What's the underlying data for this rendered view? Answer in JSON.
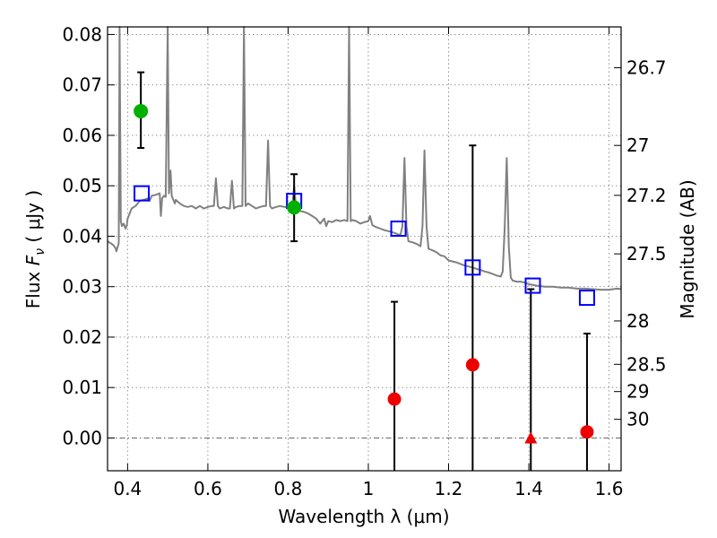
{
  "chart_data": {
    "type": "scatter",
    "xlabel": "Wavelength  λ (μm)",
    "ylabel_parts": {
      "prefix": "Flux  ",
      "var": "F",
      "sub": "ν",
      "unit": "  ( μJy )"
    },
    "ylabel_right": "Magnitude (AB)",
    "xlim": [
      0.35,
      1.63
    ],
    "ylim": [
      -0.0065,
      0.0815
    ],
    "grid": true,
    "x_ticks": [
      {
        "value": 0.4,
        "label": "0.4"
      },
      {
        "value": 0.6,
        "label": "0.6"
      },
      {
        "value": 0.8,
        "label": "0.8"
      },
      {
        "value": 1.0,
        "label": "1"
      },
      {
        "value": 1.2,
        "label": "1.2"
      },
      {
        "value": 1.4,
        "label": "1.4"
      },
      {
        "value": 1.6,
        "label": "1.6"
      }
    ],
    "y_ticks": [
      {
        "value": 0.0,
        "label": "0.00"
      },
      {
        "value": 0.01,
        "label": "0.01"
      },
      {
        "value": 0.02,
        "label": "0.02"
      },
      {
        "value": 0.03,
        "label": "0.03"
      },
      {
        "value": 0.04,
        "label": "0.04"
      },
      {
        "value": 0.05,
        "label": "0.05"
      },
      {
        "value": 0.06,
        "label": "0.06"
      },
      {
        "value": 0.07,
        "label": "0.07"
      },
      {
        "value": 0.08,
        "label": "0.08"
      }
    ],
    "magnitude_ticks": [
      {
        "flux": 0.0734,
        "label": "26.7"
      },
      {
        "flux": 0.058,
        "label": "27"
      },
      {
        "flux": 0.0481,
        "label": "27.2"
      },
      {
        "flux": 0.0365,
        "label": "27.5"
      },
      {
        "flux": 0.0232,
        "label": "28"
      },
      {
        "flux": 0.0146,
        "label": "28.5"
      },
      {
        "flux": 0.0092,
        "label": "29"
      },
      {
        "flux": 0.0037,
        "label": "30"
      }
    ],
    "model_sed": {
      "color": "#808080",
      "points": [
        [
          0.35,
          0.039
        ],
        [
          0.36,
          0.0385
        ],
        [
          0.365,
          0.0382
        ],
        [
          0.37,
          0.0376
        ],
        [
          0.372,
          0.037
        ],
        [
          0.375,
          0.0378
        ],
        [
          0.378,
          0.0386
        ],
        [
          0.38,
          0.084
        ],
        [
          0.383,
          0.043
        ],
        [
          0.386,
          0.042
        ],
        [
          0.39,
          0.0425
        ],
        [
          0.395,
          0.0415
        ],
        [
          0.398,
          0.0422
        ],
        [
          0.4,
          0.0435
        ],
        [
          0.41,
          0.0455
        ],
        [
          0.42,
          0.046
        ],
        [
          0.43,
          0.047
        ],
        [
          0.44,
          0.0472
        ],
        [
          0.45,
          0.0475
        ],
        [
          0.455,
          0.047
        ],
        [
          0.46,
          0.048
        ],
        [
          0.47,
          0.0482
        ],
        [
          0.48,
          0.0485
        ],
        [
          0.483,
          0.044
        ],
        [
          0.486,
          0.0475
        ],
        [
          0.49,
          0.048
        ],
        [
          0.495,
          0.0478
        ],
        [
          0.5,
          0.084
        ],
        [
          0.503,
          0.0485
        ],
        [
          0.507,
          0.053
        ],
        [
          0.51,
          0.048
        ],
        [
          0.515,
          0.047
        ],
        [
          0.518,
          0.0465
        ],
        [
          0.52,
          0.0472
        ],
        [
          0.53,
          0.0465
        ],
        [
          0.54,
          0.046
        ],
        [
          0.55,
          0.0458
        ],
        [
          0.56,
          0.046
        ],
        [
          0.57,
          0.0455
        ],
        [
          0.58,
          0.046
        ],
        [
          0.59,
          0.0455
        ],
        [
          0.6,
          0.0458
        ],
        [
          0.61,
          0.046
        ],
        [
          0.615,
          0.046
        ],
        [
          0.62,
          0.0515
        ],
        [
          0.625,
          0.046
        ],
        [
          0.63,
          0.0455
        ],
        [
          0.64,
          0.0458
        ],
        [
          0.65,
          0.0455
        ],
        [
          0.655,
          0.0455
        ],
        [
          0.66,
          0.051
        ],
        [
          0.665,
          0.0455
        ],
        [
          0.67,
          0.0458
        ],
        [
          0.68,
          0.046
        ],
        [
          0.686,
          0.046
        ],
        [
          0.69,
          0.084
        ],
        [
          0.694,
          0.046
        ],
        [
          0.7,
          0.0465
        ],
        [
          0.71,
          0.046
        ],
        [
          0.72,
          0.0455
        ],
        [
          0.73,
          0.0458
        ],
        [
          0.74,
          0.046
        ],
        [
          0.745,
          0.046
        ],
        [
          0.75,
          0.059
        ],
        [
          0.755,
          0.046
        ],
        [
          0.76,
          0.0455
        ],
        [
          0.77,
          0.0458
        ],
        [
          0.78,
          0.046
        ],
        [
          0.79,
          0.0458
        ],
        [
          0.8,
          0.0458
        ],
        [
          0.81,
          0.0455
        ],
        [
          0.815,
          0.05
        ],
        [
          0.82,
          0.0455
        ],
        [
          0.83,
          0.045
        ],
        [
          0.84,
          0.0448
        ],
        [
          0.85,
          0.0445
        ],
        [
          0.86,
          0.044
        ],
        [
          0.87,
          0.0435
        ],
        [
          0.875,
          0.043
        ],
        [
          0.88,
          0.0425
        ],
        [
          0.89,
          0.0435
        ],
        [
          0.895,
          0.042
        ],
        [
          0.9,
          0.043
        ],
        [
          0.91,
          0.0428
        ],
        [
          0.92,
          0.0432
        ],
        [
          0.93,
          0.043
        ],
        [
          0.94,
          0.0432
        ],
        [
          0.948,
          0.043
        ],
        [
          0.952,
          0.084
        ],
        [
          0.956,
          0.043
        ],
        [
          0.96,
          0.0432
        ],
        [
          0.97,
          0.043
        ],
        [
          0.98,
          0.0425
        ],
        [
          0.99,
          0.0428
        ],
        [
          1.0,
          0.043
        ],
        [
          1.004,
          0.044
        ],
        [
          1.01,
          0.0422
        ],
        [
          1.02,
          0.0418
        ],
        [
          1.03,
          0.0415
        ],
        [
          1.04,
          0.0412
        ],
        [
          1.05,
          0.041
        ],
        [
          1.06,
          0.0408
        ],
        [
          1.07,
          0.0405
        ],
        [
          1.08,
          0.0402
        ],
        [
          1.085,
          0.042
        ],
        [
          1.09,
          0.0555
        ],
        [
          1.095,
          0.042
        ],
        [
          1.1,
          0.039
        ],
        [
          1.11,
          0.0388
        ],
        [
          1.12,
          0.0385
        ],
        [
          1.13,
          0.038
        ],
        [
          1.135,
          0.042
        ],
        [
          1.14,
          0.057
        ],
        [
          1.145,
          0.042
        ],
        [
          1.15,
          0.0375
        ],
        [
          1.16,
          0.0372
        ],
        [
          1.17,
          0.0368
        ],
        [
          1.18,
          0.0362
        ],
        [
          1.19,
          0.036
        ],
        [
          1.2,
          0.0352
        ],
        [
          1.21,
          0.035
        ],
        [
          1.22,
          0.0348
        ],
        [
          1.23,
          0.0345
        ],
        [
          1.24,
          0.0342
        ],
        [
          1.25,
          0.034
        ],
        [
          1.26,
          0.0338
        ],
        [
          1.27,
          0.0335
        ],
        [
          1.28,
          0.0333
        ],
        [
          1.29,
          0.033
        ],
        [
          1.3,
          0.0328
        ],
        [
          1.31,
          0.0325
        ],
        [
          1.32,
          0.0322
        ],
        [
          1.33,
          0.032
        ],
        [
          1.335,
          0.033
        ],
        [
          1.34,
          0.042
        ],
        [
          1.345,
          0.0555
        ],
        [
          1.35,
          0.038
        ],
        [
          1.355,
          0.0318
        ],
        [
          1.36,
          0.0312
        ],
        [
          1.37,
          0.031
        ],
        [
          1.38,
          0.031
        ],
        [
          1.39,
          0.0308
        ],
        [
          1.4,
          0.0305
        ],
        [
          1.42,
          0.0302
        ],
        [
          1.44,
          0.03
        ],
        [
          1.46,
          0.03
        ],
        [
          1.48,
          0.0298
        ],
        [
          1.5,
          0.0298
        ],
        [
          1.52,
          0.0296
        ],
        [
          1.54,
          0.0296
        ],
        [
          1.56,
          0.0295
        ],
        [
          1.58,
          0.0294
        ],
        [
          1.6,
          0.0294
        ],
        [
          1.62,
          0.0296
        ],
        [
          1.63,
          0.0295
        ]
      ]
    },
    "model_photometry": {
      "marker": "open-square",
      "color": "#0000ff",
      "points": [
        [
          0.435,
          0.0485
        ],
        [
          0.815,
          0.047
        ],
        [
          1.075,
          0.0415
        ],
        [
          1.26,
          0.0338
        ],
        [
          1.41,
          0.0302
        ],
        [
          1.545,
          0.0278
        ]
      ]
    },
    "detections": {
      "marker": "circle",
      "color": "#00b000",
      "points": [
        {
          "x": 0.433,
          "y": 0.0648,
          "err_lo": 0.0575,
          "err_hi": 0.0725
        },
        {
          "x": 0.815,
          "y": 0.0457,
          "err_lo": 0.039,
          "err_hi": 0.0523
        }
      ]
    },
    "upper_limits": {
      "marker": "circle",
      "color": "#ee0000",
      "points": [
        {
          "x": 1.065,
          "y": 0.0077,
          "err_lo": -0.0065,
          "err_hi": 0.027,
          "marker": "circle"
        },
        {
          "x": 1.26,
          "y": 0.0145,
          "err_lo": -0.0065,
          "err_hi": 0.058,
          "marker": "circle"
        },
        {
          "x": 1.405,
          "y": 0.0,
          "err_lo": -0.0065,
          "err_hi": 0.0295,
          "marker": "triangle"
        },
        {
          "x": 1.545,
          "y": 0.0012,
          "err_lo": -0.0065,
          "err_hi": 0.0207,
          "marker": "circle"
        }
      ]
    }
  }
}
